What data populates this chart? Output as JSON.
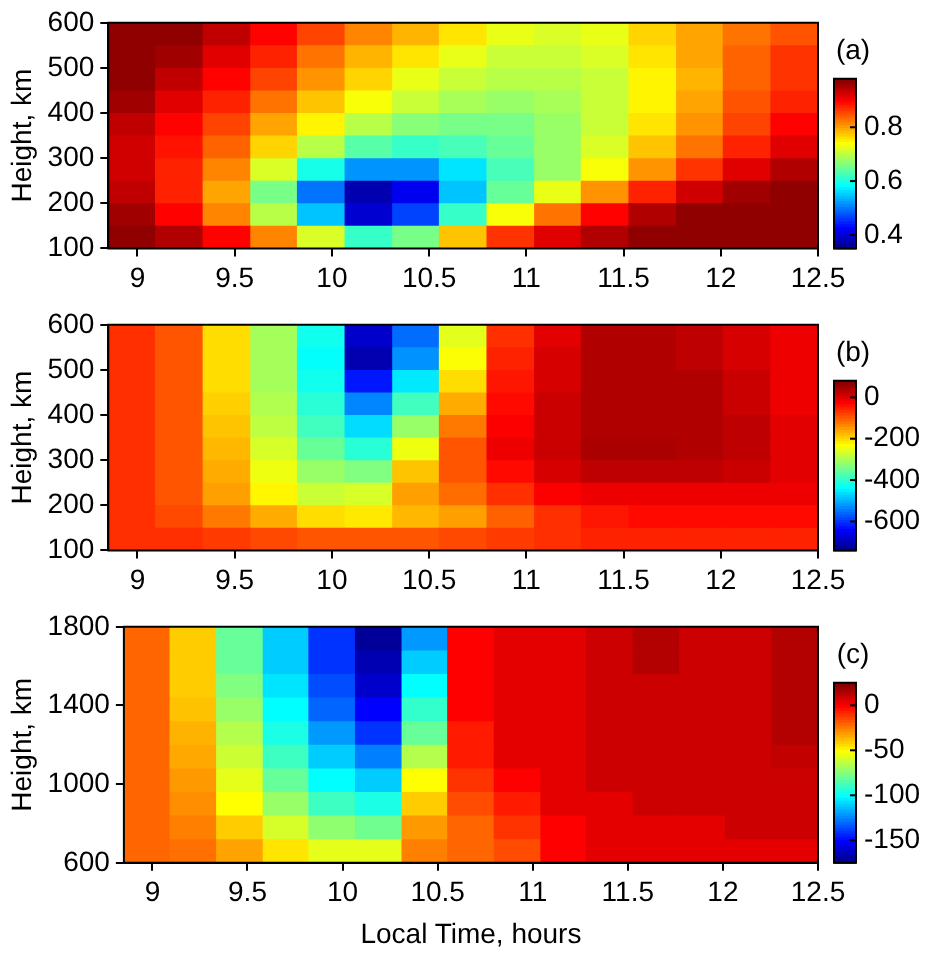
{
  "chart_data": [
    {
      "type": "heatmap",
      "ylabel": "Height, km",
      "annotations": [
        "(a)"
      ],
      "xlim": [
        8.85,
        12.5
      ],
      "xticks": [
        9,
        9.5,
        10,
        10.5,
        11,
        11.5,
        12,
        12.5
      ],
      "ylim": [
        100,
        600
      ],
      "yticks": [
        100,
        200,
        300,
        400,
        500,
        600
      ],
      "clim": [
        0.35,
        0.98
      ],
      "cticks": [
        0.4,
        0.6,
        0.8
      ],
      "x": [
        8.97,
        9.21,
        9.46,
        9.7,
        9.94,
        10.19,
        10.43,
        10.67,
        10.92,
        11.16,
        11.4,
        11.65,
        11.89,
        12.13,
        12.38
      ],
      "y": [
        575,
        525,
        475,
        425,
        375,
        325,
        275,
        225,
        175,
        125
      ],
      "cells": [
        [
          0.97,
          0.97,
          0.94,
          0.9,
          0.86,
          0.82,
          0.79,
          0.76,
          0.73,
          0.72,
          0.73,
          0.77,
          0.8,
          0.83,
          0.85
        ],
        [
          0.97,
          0.96,
          0.92,
          0.88,
          0.83,
          0.79,
          0.76,
          0.73,
          0.71,
          0.71,
          0.72,
          0.76,
          0.8,
          0.84,
          0.87
        ],
        [
          0.97,
          0.94,
          0.9,
          0.86,
          0.81,
          0.77,
          0.73,
          0.71,
          0.7,
          0.7,
          0.71,
          0.75,
          0.79,
          0.84,
          0.87
        ],
        [
          0.96,
          0.92,
          0.88,
          0.83,
          0.78,
          0.74,
          0.71,
          0.69,
          0.68,
          0.69,
          0.71,
          0.75,
          0.8,
          0.85,
          0.88
        ],
        [
          0.94,
          0.9,
          0.86,
          0.8,
          0.75,
          0.7,
          0.67,
          0.66,
          0.66,
          0.68,
          0.71,
          0.76,
          0.81,
          0.86,
          0.9
        ],
        [
          0.93,
          0.89,
          0.84,
          0.77,
          0.7,
          0.64,
          0.62,
          0.63,
          0.65,
          0.68,
          0.72,
          0.78,
          0.83,
          0.88,
          0.92
        ],
        [
          0.93,
          0.88,
          0.82,
          0.72,
          0.6,
          0.52,
          0.52,
          0.57,
          0.63,
          0.68,
          0.74,
          0.81,
          0.87,
          0.92,
          0.95
        ],
        [
          0.94,
          0.88,
          0.8,
          0.66,
          0.5,
          0.38,
          0.42,
          0.55,
          0.65,
          0.73,
          0.81,
          0.88,
          0.93,
          0.96,
          0.97
        ],
        [
          0.96,
          0.9,
          0.82,
          0.7,
          0.55,
          0.4,
          0.47,
          0.62,
          0.74,
          0.83,
          0.9,
          0.95,
          0.97,
          0.97,
          0.97
        ],
        [
          0.97,
          0.95,
          0.9,
          0.82,
          0.72,
          0.62,
          0.66,
          0.78,
          0.87,
          0.92,
          0.95,
          0.97,
          0.97,
          0.97,
          0.97
        ]
      ]
    },
    {
      "type": "heatmap",
      "ylabel": "Height, km",
      "annotations": [
        "(b)"
      ],
      "xlim": [
        8.85,
        12.5
      ],
      "xticks": [
        9,
        9.5,
        10,
        10.5,
        11,
        11.5,
        12,
        12.5
      ],
      "ylim": [
        100,
        600
      ],
      "yticks": [
        100,
        200,
        300,
        400,
        500,
        600
      ],
      "clim": [
        -740,
        80
      ],
      "cticks": [
        0,
        -200,
        -400,
        -600
      ],
      "x": [
        8.97,
        9.21,
        9.46,
        9.7,
        9.94,
        10.19,
        10.43,
        10.67,
        10.92,
        11.16,
        11.4,
        11.65,
        11.89,
        12.13,
        12.38
      ],
      "y": [
        575,
        525,
        475,
        425,
        375,
        325,
        275,
        225,
        175,
        125
      ],
      "cells": [
        [
          -60,
          -90,
          -200,
          -300,
          -420,
          -680,
          -550,
          -250,
          -60,
          0,
          40,
          40,
          30,
          10,
          -10
        ],
        [
          -60,
          -90,
          -200,
          -300,
          -430,
          -700,
          -520,
          -230,
          -50,
          10,
          40,
          40,
          30,
          10,
          -10
        ],
        [
          -60,
          -90,
          -200,
          -300,
          -420,
          -620,
          -450,
          -200,
          -40,
          10,
          40,
          40,
          40,
          20,
          -10
        ],
        [
          -60,
          -90,
          -190,
          -290,
          -400,
          -530,
          -380,
          -160,
          -30,
          20,
          40,
          40,
          40,
          20,
          -10
        ],
        [
          -60,
          -90,
          -180,
          -280,
          -380,
          -460,
          -310,
          -120,
          -20,
          20,
          40,
          40,
          40,
          30,
          0
        ],
        [
          -60,
          -90,
          -170,
          -260,
          -350,
          -400,
          -240,
          -90,
          -10,
          20,
          45,
          45,
          40,
          30,
          0
        ],
        [
          -60,
          -90,
          -160,
          -240,
          -310,
          -330,
          -180,
          -90,
          -30,
          10,
          30,
          30,
          30,
          20,
          0
        ],
        [
          -60,
          -90,
          -150,
          -220,
          -270,
          -260,
          -150,
          -110,
          -60,
          -20,
          -10,
          -10,
          -10,
          -10,
          -10
        ],
        [
          -60,
          -80,
          -120,
          -160,
          -200,
          -210,
          -170,
          -150,
          -100,
          -60,
          -40,
          -30,
          -30,
          -30,
          -30
        ],
        [
          -60,
          -60,
          -70,
          -80,
          -90,
          -90,
          -90,
          -80,
          -70,
          -60,
          -50,
          -50,
          -50,
          -50,
          -50
        ]
      ]
    },
    {
      "type": "heatmap",
      "xlabel": "Local Time, hours",
      "ylabel": "Height, km",
      "annotations": [
        "(c)"
      ],
      "xlim": [
        8.85,
        12.5
      ],
      "xticks": [
        9,
        9.5,
        10,
        10.5,
        11,
        11.5,
        12,
        12.5
      ],
      "ylim": [
        600,
        1800
      ],
      "yticks": [
        600,
        1000,
        1400,
        1800
      ],
      "clim": [
        -175,
        25
      ],
      "cticks": [
        0,
        -50,
        -100,
        -150
      ],
      "x": [
        8.97,
        9.21,
        9.46,
        9.7,
        9.94,
        10.19,
        10.43,
        10.67,
        10.92,
        11.16,
        11.4,
        11.65,
        11.89,
        12.13,
        12.38
      ],
      "y": [
        1740,
        1620,
        1500,
        1380,
        1260,
        1140,
        1020,
        900,
        780,
        660
      ],
      "cells": [
        [
          -20,
          -40,
          -80,
          -110,
          -140,
          -170,
          -120,
          0,
          5,
          5,
          10,
          15,
          10,
          10,
          15
        ],
        [
          -20,
          -40,
          -80,
          -110,
          -140,
          -165,
          -110,
          0,
          5,
          5,
          10,
          15,
          10,
          10,
          15
        ],
        [
          -20,
          -40,
          -75,
          -105,
          -135,
          -160,
          -100,
          0,
          5,
          5,
          10,
          10,
          10,
          10,
          15
        ],
        [
          -20,
          -38,
          -70,
          -100,
          -130,
          -150,
          -90,
          0,
          5,
          5,
          10,
          10,
          10,
          10,
          15
        ],
        [
          -20,
          -35,
          -65,
          -95,
          -120,
          -140,
          -80,
          -5,
          5,
          5,
          10,
          10,
          10,
          10,
          15
        ],
        [
          -20,
          -33,
          -60,
          -88,
          -110,
          -125,
          -65,
          -5,
          5,
          5,
          10,
          10,
          10,
          10,
          12
        ],
        [
          -20,
          -30,
          -55,
          -80,
          -100,
          -110,
          -50,
          -10,
          0,
          5,
          10,
          10,
          10,
          10,
          10
        ],
        [
          -20,
          -28,
          -50,
          -70,
          -88,
          -95,
          -40,
          -15,
          -5,
          5,
          5,
          10,
          10,
          10,
          10
        ],
        [
          -20,
          -25,
          -40,
          -58,
          -72,
          -78,
          -30,
          -20,
          -10,
          0,
          5,
          5,
          5,
          10,
          10
        ],
        [
          -20,
          -22,
          -32,
          -45,
          -55,
          -55,
          -25,
          -20,
          -15,
          0,
          5,
          5,
          5,
          5,
          5
        ]
      ]
    }
  ]
}
